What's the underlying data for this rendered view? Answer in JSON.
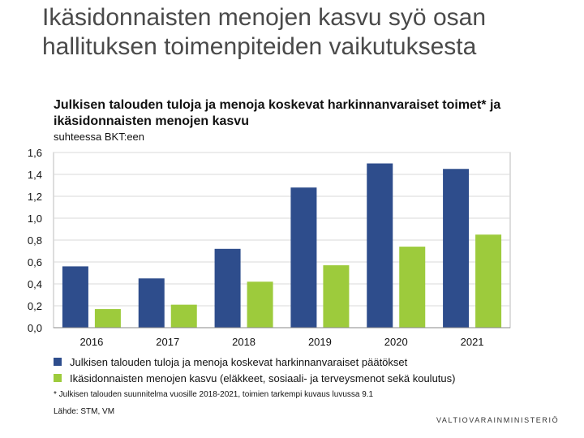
{
  "slide": {
    "title": "Ikäsidonnaisten menojen kasvu syö osan hallituksen toimenpiteiden vaikutuksesta"
  },
  "chart_data": {
    "type": "bar",
    "title": "Julkisen talouden tuloja ja menoja koskevat harkinnanvaraiset toimet* ja ikäsidonnaisten menojen kasvu",
    "subtitle": "suhteessa  BKT:een",
    "categories": [
      "2016",
      "2017",
      "2018",
      "2019",
      "2020",
      "2021"
    ],
    "series": [
      {
        "name": "Julkisen talouden tuloja ja menoja koskevat harkinnanvaraiset päätökset",
        "color": "#2e4d8c",
        "values": [
          0.56,
          0.45,
          0.72,
          1.28,
          1.5,
          1.45
        ]
      },
      {
        "name": "Ikäsidonnaisten menojen kasvu (eläkkeet, sosiaali- ja terveysmenot sekä koulutus)",
        "color": "#9dcb3c",
        "values": [
          0.17,
          0.21,
          0.42,
          0.57,
          0.74,
          0.85
        ]
      }
    ],
    "ylim": [
      0,
      1.6
    ],
    "yticks": [
      "0,0",
      "0,2",
      "0,4",
      "0,6",
      "0,8",
      "1,0",
      "1,2",
      "1,4",
      "1,6"
    ],
    "xlabel": "",
    "ylabel": "",
    "grid": true,
    "legend_position": "bottom"
  },
  "footnote": "* Julkisen talouden suunnitelma vuosille 2018-2021, toimien tarkempi kuvaus luvussa 9.1",
  "source": "Lähde: STM, VM",
  "logo_text": "VALTIOVARAINMINISTERIÖ"
}
